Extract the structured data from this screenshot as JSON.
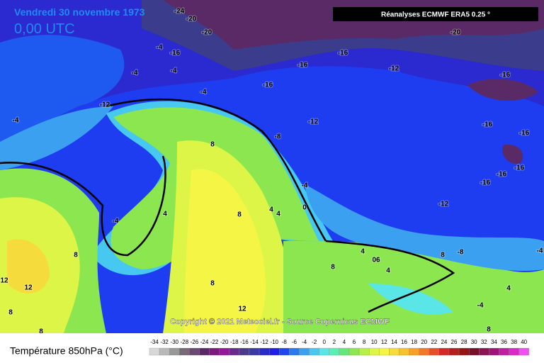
{
  "map": {
    "title": "Vendredi 30 novembre 1973",
    "time": "0,00 UTC",
    "source": "Réanalyses ECMWF ERA5 0.25 °",
    "copyright": "Copyright © 2021 Meteociel.fr - Source Copernicus ECMWF",
    "contour_labels": [
      "-24",
      "-20",
      "-20",
      "-20",
      "-4",
      "-16",
      "-4",
      "-4",
      "-16",
      "-16",
      "-12",
      "-16",
      "-16",
      "-4",
      "-12",
      "-4",
      "-12",
      "-8",
      "-16",
      "-16",
      "8",
      "-16",
      "-16",
      "-16",
      "-4",
      "-12",
      "4",
      "4",
      "0",
      "-4",
      "4",
      "8",
      "8",
      "4",
      "-8",
      "8",
      "06",
      "4",
      "8",
      "12",
      "12",
      "8",
      "4",
      "12",
      "8",
      "-4",
      "8",
      "8",
      "-4"
    ]
  },
  "legend": {
    "title": "Température 850hPa (°C)",
    "ticks": [
      -34,
      -32,
      -30,
      -28,
      -26,
      -24,
      -22,
      -20,
      -18,
      -16,
      -14,
      -12,
      -10,
      -8,
      -6,
      -4,
      -2,
      0,
      2,
      4,
      6,
      8,
      10,
      12,
      14,
      16,
      18,
      20,
      22,
      24,
      26,
      28,
      30,
      32,
      34,
      36,
      38,
      40
    ],
    "colors": [
      "#d8d8d8",
      "#b8b8b8",
      "#989898",
      "#786878",
      "#6a4a70",
      "#5a2a66",
      "#7a1a7a",
      "#96189a",
      "#6a2a8a",
      "#4a3a8a",
      "#3a3aa0",
      "#2a2ac8",
      "#1e1ee6",
      "#1e46f0",
      "#2878f0",
      "#3ca0f0",
      "#46c8f0",
      "#5ae6e6",
      "#5af0b4",
      "#64e678",
      "#8ce650",
      "#b4f046",
      "#dcf546",
      "#f5f546",
      "#f5dc3c",
      "#f5c332",
      "#f5a028",
      "#f07828",
      "#e65028",
      "#d22828",
      "#b41e1e",
      "#961414",
      "#780f28",
      "#8c1450",
      "#a01478",
      "#be1ea0",
      "#dc28c8",
      "#f050f0"
    ]
  }
}
